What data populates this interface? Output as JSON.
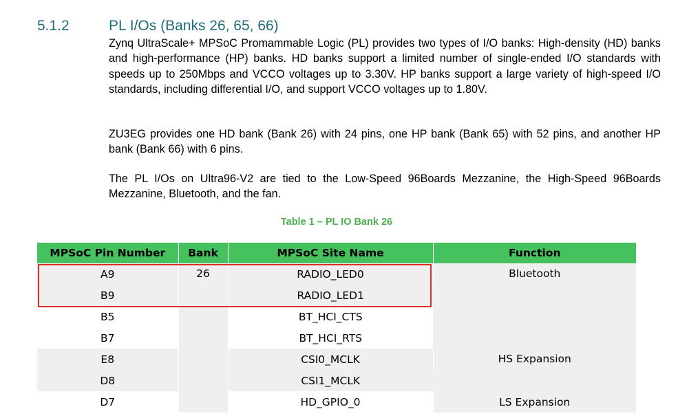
{
  "section": {
    "number": "5.1.2",
    "title": "PL I/Os (Banks 26, 65, 66)"
  },
  "paragraphs": [
    "Zynq UltraScale+ MPSoC Promammable Logic (PL) provides two types of I/O banks: High-density (HD) banks and high-performance (HP) banks. HD banks support a limited number of single-ended I/O standards with speeds up to 250Mbps and VCCO voltages up to 3.30V. HP banks support a large variety of high-speed I/O standards, including differential I/O, and support VCCO voltages up to 1.80V.",
    "ZU3EG provides one HD bank (Bank 26) with 24 pins, one HP bank (Bank 65) with 52 pins, and another HP bank (Bank 66) with 6 pins.",
    "The PL I/Os on Ultra96-V2 are tied to the Low-Speed 96Boards Mezzanine, the High-Speed 96Boards Mezzanine, Bluetooth, and the fan."
  ],
  "table": {
    "caption": "Table 1 – PL IO Bank 26",
    "headers": [
      "MPSoC Pin Number",
      "Bank",
      "MPSoC Site Name",
      "Function"
    ],
    "bank": "26",
    "pins": [
      {
        "pin": "A9",
        "site": "RADIO_LED0"
      },
      {
        "pin": "B9",
        "site": "RADIO_LED1"
      },
      {
        "pin": "B5",
        "site": "BT_HCI_CTS"
      },
      {
        "pin": "B7",
        "site": "BT_HCI_RTS"
      },
      {
        "pin": "E8",
        "site": "CSI0_MCLK"
      },
      {
        "pin": "D8",
        "site": "CSI1_MCLK"
      },
      {
        "pin": "D7",
        "site": "HD_GPIO_0"
      }
    ],
    "functions": [
      "Bluetooth",
      "HS Expansion",
      "LS Expansion"
    ]
  },
  "colors": {
    "heading": "#1f6b7a",
    "caption": "#4cb050",
    "table_header_bg": "#45c15e",
    "row_shade": "#efefef",
    "highlight_border": "#e32b2b"
  }
}
